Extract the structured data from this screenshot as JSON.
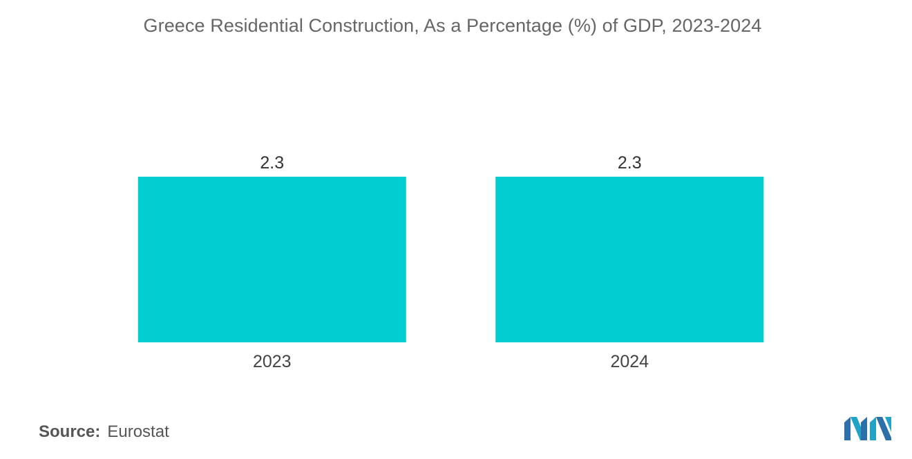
{
  "chart_data": {
    "type": "bar",
    "title": "Greece Residential Construction, As a Percentage (%) of GDP, 2023-2024",
    "categories": [
      "2023",
      "2024"
    ],
    "values": [
      2.3,
      2.3
    ],
    "data_labels": [
      "2.3",
      "2.3"
    ],
    "xlabel": "",
    "ylabel": "",
    "ylim": [
      0,
      2.3
    ],
    "grid": false,
    "legend": "none",
    "bar_color": "#00CED1"
  },
  "source": {
    "label": "Source:",
    "value": "Eurostat"
  },
  "logo": {
    "icon": "mordor-intelligence-logo-icon",
    "colors": [
      "#1FA3C7",
      "#2D6FA8"
    ]
  }
}
